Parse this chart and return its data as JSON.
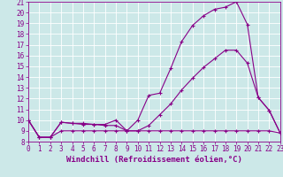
{
  "line1_x": [
    0,
    1,
    2,
    3,
    4,
    5,
    6,
    7,
    8,
    9,
    10,
    11,
    12,
    13,
    14,
    15,
    16,
    17,
    18,
    19,
    20,
    21,
    22,
    23
  ],
  "line1_y": [
    10.0,
    8.4,
    8.4,
    9.8,
    9.7,
    9.7,
    9.6,
    9.6,
    10.0,
    9.0,
    10.0,
    12.3,
    12.5,
    14.8,
    17.3,
    18.8,
    19.7,
    20.3,
    20.5,
    21.0,
    18.9,
    12.1,
    10.9,
    8.8
  ],
  "line2_x": [
    0,
    1,
    2,
    3,
    4,
    5,
    6,
    7,
    8,
    9,
    10,
    11,
    12,
    13,
    14,
    15,
    16,
    17,
    18,
    19,
    20,
    21,
    22,
    23
  ],
  "line2_y": [
    10.0,
    8.4,
    8.4,
    9.8,
    9.7,
    9.6,
    9.6,
    9.5,
    9.5,
    9.0,
    9.0,
    9.5,
    10.5,
    11.5,
    12.8,
    13.9,
    14.9,
    15.7,
    16.5,
    16.5,
    15.3,
    12.1,
    10.9,
    8.8
  ],
  "line3_x": [
    0,
    1,
    2,
    3,
    4,
    5,
    6,
    7,
    8,
    9,
    10,
    11,
    12,
    13,
    14,
    15,
    16,
    17,
    18,
    19,
    20,
    21,
    22,
    23
  ],
  "line3_y": [
    10.0,
    8.4,
    8.4,
    9.0,
    9.0,
    9.0,
    9.0,
    9.0,
    9.0,
    9.0,
    9.0,
    9.0,
    9.0,
    9.0,
    9.0,
    9.0,
    9.0,
    9.0,
    9.0,
    9.0,
    9.0,
    9.0,
    9.0,
    8.8
  ],
  "line_color": "#880088",
  "bg_color": "#cce8e8",
  "grid_color": "#aacccc",
  "xlabel": "Windchill (Refroidissement éolien,°C)",
  "xlim": [
    0,
    23
  ],
  "ylim": [
    8,
    21
  ],
  "xticks": [
    0,
    1,
    2,
    3,
    4,
    5,
    6,
    7,
    8,
    9,
    10,
    11,
    12,
    13,
    14,
    15,
    16,
    17,
    18,
    19,
    20,
    21,
    22,
    23
  ],
  "yticks": [
    8,
    9,
    10,
    11,
    12,
    13,
    14,
    15,
    16,
    17,
    18,
    19,
    20,
    21
  ],
  "marker": "+",
  "markersize": 3,
  "linewidth": 0.8,
  "xlabel_fontsize": 6.5,
  "tick_fontsize": 5.5
}
